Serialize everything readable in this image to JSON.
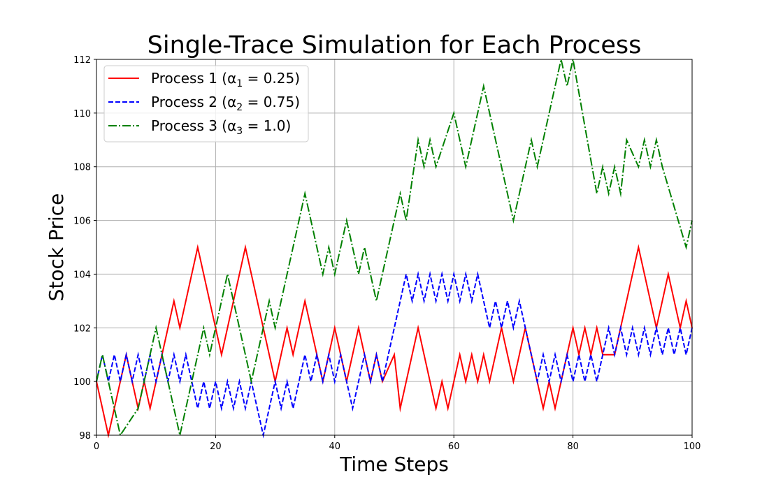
{
  "chart_data": {
    "type": "line",
    "title": "Single-Trace Simulation for Each Process",
    "xlabel": "Time Steps",
    "ylabel": "Stock Price",
    "xlim": [
      0,
      100
    ],
    "ylim": [
      98,
      112
    ],
    "xticks": [
      0,
      20,
      40,
      60,
      80,
      100
    ],
    "yticks": [
      98,
      100,
      102,
      104,
      106,
      108,
      110,
      112
    ],
    "grid": true,
    "legend_position": "top-left",
    "series": [
      {
        "name": "Process 1",
        "legend_label": "Process 1 (α",
        "subscript": "1",
        "legend_value": " = 0.25)",
        "alpha": 0.25,
        "color": "#ff0000",
        "dash": "solid",
        "x": [
          0,
          2,
          5,
          7,
          8,
          9,
          13,
          14,
          17,
          21,
          25,
          30,
          32,
          33,
          35,
          38,
          40,
          42,
          44,
          46,
          47,
          48,
          50,
          51,
          54,
          57,
          58,
          59,
          61,
          62,
          63,
          64,
          65,
          66,
          68,
          70,
          72,
          75,
          76,
          77,
          78,
          80,
          81,
          82,
          83,
          84,
          85,
          87,
          91,
          94,
          96,
          98,
          99,
          100
        ],
        "values": [
          100,
          98,
          101,
          99,
          100,
          99,
          103,
          102,
          105,
          101,
          105,
          100,
          102,
          101,
          103,
          100,
          102,
          100,
          102,
          100,
          101,
          100,
          101,
          99,
          102,
          99,
          100,
          99,
          101,
          100,
          101,
          100,
          101,
          100,
          102,
          100,
          102,
          99,
          100,
          99,
          100,
          102,
          101,
          102,
          101,
          102,
          101,
          101,
          105,
          102,
          104,
          102,
          103,
          102
        ]
      },
      {
        "name": "Process 2",
        "legend_label": "Process 2 (α",
        "subscript": "2",
        "legend_value": " = 0.75)",
        "alpha": 0.75,
        "color": "#0000ff",
        "dash": "dashed",
        "x": [
          0,
          1,
          2,
          3,
          4,
          5,
          6,
          7,
          8,
          9,
          10,
          11,
          12,
          13,
          14,
          15,
          16,
          17,
          18,
          19,
          20,
          21,
          22,
          23,
          24,
          25,
          26,
          27,
          28,
          29,
          30,
          31,
          32,
          33,
          34,
          35,
          36,
          37,
          38,
          39,
          40,
          41,
          42,
          43,
          44,
          45,
          46,
          47,
          48,
          49,
          50,
          51,
          52,
          53,
          54,
          55,
          56,
          57,
          58,
          59,
          60,
          61,
          62,
          63,
          64,
          65,
          66,
          67,
          68,
          69,
          70,
          71,
          72,
          73,
          74,
          75,
          76,
          77,
          78,
          79,
          80,
          81,
          82,
          83,
          84,
          85,
          86,
          87,
          88,
          89,
          90,
          91,
          92,
          93,
          94,
          95,
          96,
          97,
          98,
          99,
          100
        ],
        "values": [
          100,
          101,
          100,
          101,
          100,
          101,
          100,
          101,
          100,
          101,
          100,
          101,
          100,
          101,
          100,
          101,
          100,
          99,
          100,
          99,
          100,
          99,
          100,
          99,
          100,
          99,
          100,
          99,
          98,
          99,
          100,
          99,
          100,
          99,
          100,
          101,
          100,
          101,
          100,
          101,
          100,
          101,
          100,
          99,
          100,
          101,
          100,
          101,
          100,
          101,
          102,
          103,
          104,
          103,
          104,
          103,
          104,
          103,
          104,
          103,
          104,
          103,
          104,
          103,
          104,
          103,
          102,
          103,
          102,
          103,
          102,
          103,
          102,
          101,
          100,
          101,
          100,
          101,
          100,
          101,
          100,
          101,
          100,
          101,
          100,
          101,
          102,
          101,
          102,
          101,
          102,
          101,
          102,
          101,
          102,
          101,
          102,
          101,
          102,
          101,
          102
        ]
      },
      {
        "name": "Process 3",
        "legend_label": "Process 3 (α",
        "subscript": "3",
        "legend_value": " = 1.0)",
        "alpha": 1.0,
        "color": "#008000",
        "dash": "dashdot",
        "x": [
          0,
          1,
          4,
          7,
          10,
          14,
          18,
          19,
          22,
          26,
          29,
          30,
          35,
          38,
          39,
          40,
          42,
          44,
          45,
          47,
          51,
          52,
          54,
          55,
          56,
          57,
          60,
          62,
          65,
          70,
          73,
          74,
          78,
          79,
          80,
          84,
          85,
          86,
          87,
          88,
          89,
          91,
          92,
          93,
          94,
          95,
          99,
          100
        ],
        "values": [
          100,
          101,
          98,
          99,
          102,
          98,
          102,
          101,
          104,
          100,
          103,
          102,
          107,
          104,
          105,
          104,
          106,
          104,
          105,
          103,
          107,
          106,
          109,
          108,
          109,
          108,
          110,
          108,
          111,
          106,
          109,
          108,
          112,
          111,
          112,
          107,
          108,
          107,
          108,
          107,
          109,
          108,
          109,
          108,
          109,
          108,
          105,
          106
        ]
      }
    ]
  }
}
